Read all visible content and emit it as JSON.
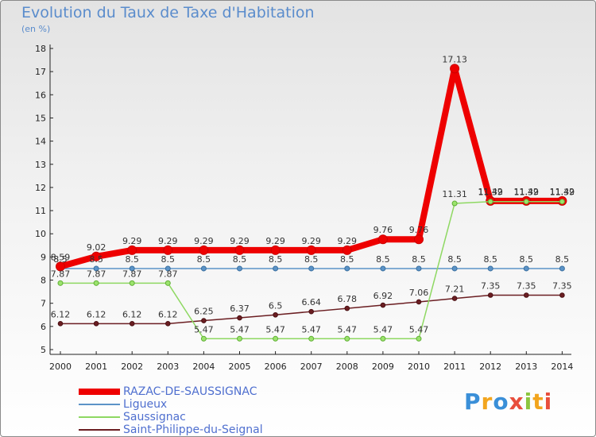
{
  "title": "Evolution du Taux de Taxe d'Habitation",
  "subtitle": "(en %)",
  "logo": "Proxiti",
  "chart_data": {
    "type": "line",
    "title": "Evolution du Taux de Taxe d'Habitation",
    "subtitle": "(en %)",
    "xlabel": "",
    "ylabel": "",
    "x": [
      "2000",
      "2001",
      "2002",
      "2003",
      "2004",
      "2005",
      "2006",
      "2007",
      "2008",
      "2009",
      "2010",
      "2011",
      "2012",
      "2013",
      "2014"
    ],
    "ylim": [
      5,
      18
    ],
    "yticks": [
      "5",
      "6",
      "7",
      "8",
      "9",
      "10",
      "11",
      "12",
      "13",
      "14",
      "15",
      "16",
      "17",
      "18"
    ],
    "grid": false,
    "legend_position": "bottom-left",
    "series": [
      {
        "name": "RAZAC-DE-SAUSSIGNAC",
        "color": "#ee0000",
        "values": [
          8.59,
          9.02,
          9.29,
          9.29,
          9.29,
          9.29,
          9.29,
          9.29,
          9.29,
          9.76,
          9.76,
          17.13,
          11.42,
          11.42,
          11.42
        ],
        "labels": [
          "8.59",
          "9.02",
          "9.29",
          "9.29",
          "9.29",
          "9.29",
          "9.29",
          "9.29",
          "9.29",
          "9.76",
          "9.76",
          "17.13",
          "11.42",
          "11.42",
          "11.42"
        ]
      },
      {
        "name": "Ligueux",
        "color": "#5b93c7",
        "values": [
          8.5,
          8.5,
          8.5,
          8.5,
          8.5,
          8.5,
          8.5,
          8.5,
          8.5,
          8.5,
          8.5,
          8.5,
          8.5,
          8.5,
          8.5
        ],
        "labels": [
          "8.5",
          "8.5",
          "8.5",
          "8.5",
          "8.5",
          "8.5",
          "8.5",
          "8.5",
          "8.5",
          "8.5",
          "8.5",
          "8.5",
          "8.5",
          "8.5",
          "8.5"
        ]
      },
      {
        "name": "Saussignac",
        "color": "#8ed862",
        "values": [
          7.87,
          7.87,
          7.87,
          7.87,
          5.47,
          5.47,
          5.47,
          5.47,
          5.47,
          5.47,
          5.47,
          11.31,
          11.39,
          11.39,
          11.39
        ],
        "labels": [
          "7.87",
          "7.87",
          "7.87",
          "7.87",
          "5.47",
          "5.47",
          "5.47",
          "5.47",
          "5.47",
          "5.47",
          "5.47",
          "11.31",
          "11.39",
          "11.39",
          "11.39"
        ]
      },
      {
        "name": "Saint-Philippe-du-Seignal",
        "color": "#6b1e22",
        "values": [
          6.12,
          6.12,
          6.12,
          6.12,
          6.25,
          6.37,
          6.5,
          6.64,
          6.78,
          6.92,
          7.06,
          7.21,
          7.35,
          7.35,
          7.35
        ],
        "labels": [
          "6.12",
          "6.12",
          "6.12",
          "6.12",
          "6.25",
          "6.37",
          "6.5",
          "6.64",
          "6.78",
          "6.92",
          "7.06",
          "7.21",
          "7.35",
          "7.35",
          "7.35"
        ]
      }
    ]
  }
}
